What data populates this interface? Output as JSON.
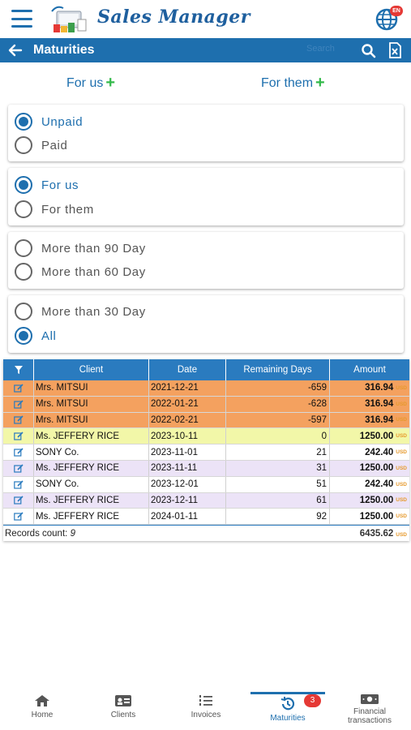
{
  "header": {
    "brand": "Sales Manager",
    "lang_badge": "EN"
  },
  "titlebar": {
    "title": "Maturities",
    "search_hint": "Search"
  },
  "tabs": [
    {
      "label": "For us",
      "icon": "plus-icon"
    },
    {
      "label": "For them",
      "icon": "plus-icon"
    }
  ],
  "filters": {
    "status": [
      {
        "label": "Unpaid",
        "selected": true
      },
      {
        "label": "Paid",
        "selected": false
      }
    ],
    "side": [
      {
        "label": "For us",
        "selected": true
      },
      {
        "label": "For them",
        "selected": false
      }
    ],
    "age_a": [
      {
        "label": "More than 90 Day",
        "selected": false
      },
      {
        "label": "More than 60 Day",
        "selected": false
      }
    ],
    "age_b": [
      {
        "label": "More than 30 Day",
        "selected": false
      },
      {
        "label": "All",
        "selected": true
      }
    ]
  },
  "table": {
    "headers": {
      "client": "Client",
      "date": "Date",
      "remaining": "Remaining Days",
      "amount": "Amount"
    },
    "currency": "USD",
    "rows": [
      {
        "client": "Mrs. MITSUI",
        "date": "2021-12-21",
        "remaining": "-659",
        "amount": "316.94",
        "color": "#f4a15f"
      },
      {
        "client": "Mrs. MITSUI",
        "date": "2022-01-21",
        "remaining": "-628",
        "amount": "316.94",
        "color": "#f4a15f"
      },
      {
        "client": "Mrs. MITSUI",
        "date": "2022-02-21",
        "remaining": "-597",
        "amount": "316.94",
        "color": "#f4a15f"
      },
      {
        "client": "Ms. JEFFERY RICE",
        "date": "2023-10-11",
        "remaining": "0",
        "amount": "1250.00",
        "color": "#f2f7a8"
      },
      {
        "client": "SONY Co.",
        "date": "2023-11-01",
        "remaining": "21",
        "amount": "242.40",
        "color": "#ffffff"
      },
      {
        "client": "Ms. JEFFERY RICE",
        "date": "2023-11-11",
        "remaining": "31",
        "amount": "1250.00",
        "color": "#ece3f7"
      },
      {
        "client": "SONY Co.",
        "date": "2023-12-01",
        "remaining": "51",
        "amount": "242.40",
        "color": "#ffffff"
      },
      {
        "client": "Ms. JEFFERY RICE",
        "date": "2023-12-11",
        "remaining": "61",
        "amount": "1250.00",
        "color": "#ece3f7"
      },
      {
        "client": "Ms. JEFFERY RICE",
        "date": "2024-01-11",
        "remaining": "92",
        "amount": "1250.00",
        "color": "#ffffff"
      }
    ],
    "footer": {
      "records_label": "Records count:",
      "records_count": "9",
      "total": "6435.62"
    }
  },
  "nav": {
    "home": "Home",
    "clients": "Clients",
    "invoices": "Invoices",
    "maturities": "Maturities",
    "maturities_badge": "3",
    "financial_1": "Financial",
    "financial_2": "transactions"
  },
  "colors": {
    "primary": "#1e6fae",
    "accent_green": "#33b94a",
    "overdue": "#f4a15f",
    "due_today": "#f2f7a8",
    "badge": "#e53935"
  }
}
